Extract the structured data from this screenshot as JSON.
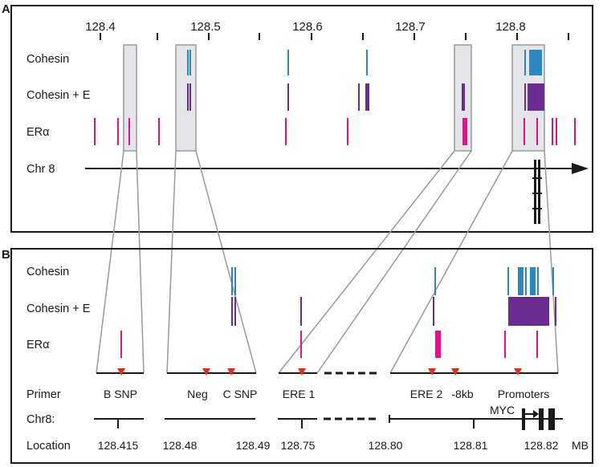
{
  "colors": {
    "cohesin": "#2e86c1",
    "cohesin_e": "#6a2c91",
    "er": "#e0128a",
    "primer": "#e8291c",
    "highlight_fill": "#e4e5e8",
    "highlight_stroke": "#9a9a9a",
    "line": "#1a1a1a"
  },
  "panel_a": {
    "letter": "A",
    "axis_labels": [
      "128.4",
      "128.5",
      "128.6",
      "128.7",
      "128.8"
    ],
    "tracks": {
      "cohesin": "Cohesin",
      "cohesin_e": "Cohesin + E",
      "er": "ERα",
      "chr": "Chr 8"
    }
  },
  "panel_b": {
    "letter": "B",
    "tracks": {
      "cohesin": "Cohesin",
      "cohesin_e": "Cohesin + E",
      "er": "ERα"
    },
    "row_labels": {
      "primer": "Primer",
      "chr": "Chr8:",
      "location": "Location"
    },
    "primers": [
      "B SNP",
      "Neg",
      "C SNP",
      "ERE 1",
      "ERE 2",
      "-8kb",
      "Promoters"
    ],
    "gene": "MYC",
    "locations": [
      "128.415",
      "128.48",
      "128.49",
      "128.75",
      "128.80",
      "128.81",
      "128.82"
    ],
    "unit": "MB"
  }
}
